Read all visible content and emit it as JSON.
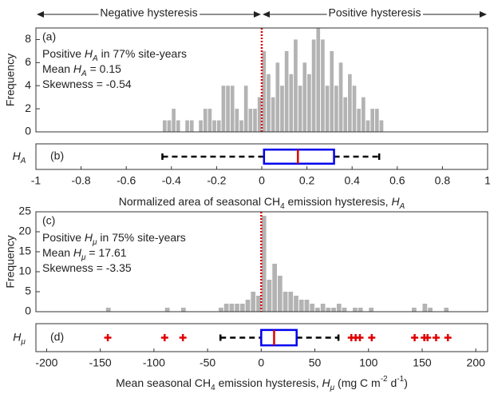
{
  "chart_data": [
    {
      "type": "histogram",
      "panel_label": "(a)",
      "ylabel": "Frequency",
      "header": {
        "left": "Negative hysteresis",
        "right": "Positive hysteresis"
      },
      "bins": [
        -0.46,
        -0.44,
        -0.42,
        -0.4,
        -0.38,
        -0.36,
        -0.34,
        -0.32,
        -0.3,
        -0.28,
        -0.26,
        -0.24,
        -0.22,
        -0.2,
        -0.18,
        -0.16,
        -0.14,
        -0.12,
        -0.1,
        -0.08,
        -0.06,
        -0.04,
        -0.02,
        0,
        0.02,
        0.04,
        0.06,
        0.08,
        0.1,
        0.12,
        0.14,
        0.16,
        0.18,
        0.2,
        0.22,
        0.24,
        0.26,
        0.28,
        0.3,
        0.32,
        0.34,
        0.36,
        0.38,
        0.4,
        0.42,
        0.44,
        0.46,
        0.48,
        0.5,
        0.52,
        0.54
      ],
      "counts": [
        0,
        1,
        1,
        2,
        1,
        0,
        1,
        1,
        0,
        1,
        2,
        2,
        1,
        1,
        4,
        4,
        4,
        2,
        1,
        4,
        2,
        2,
        3,
        7,
        5,
        3,
        6,
        4,
        7,
        5,
        8,
        4,
        6,
        5,
        8,
        9,
        8,
        4,
        7,
        4,
        6,
        3,
        5,
        4,
        2,
        3,
        1,
        2,
        2,
        1
      ],
      "color": "#b3b3b3",
      "xlim": [
        -1,
        1
      ],
      "ylim": [
        0,
        9
      ],
      "yticks": [
        0,
        2,
        4,
        6,
        8
      ],
      "vline": {
        "value": 0,
        "color": "#e00000"
      },
      "text": [
        [
          {
            "text": "Positive "
          },
          {
            "text": "H",
            "italic": true
          },
          {
            "text": "A",
            "sub": true,
            "italic": true
          },
          {
            "text": " in 77% site-years"
          }
        ],
        [
          {
            "text": "Mean  "
          },
          {
            "text": "H",
            "italic": true
          },
          {
            "text": "A",
            "sub": true,
            "italic": true
          },
          {
            "text": " = 0.15"
          }
        ],
        [
          {
            "text": "Skewness  = -0.54"
          }
        ]
      ]
    },
    {
      "type": "box",
      "panel_label": "(b)",
      "ylabel": [
        {
          "text": "H",
          "italic": true
        },
        {
          "text": "A",
          "sub": true,
          "italic": true
        }
      ],
      "box": {
        "whisker_low": -0.44,
        "q1": 0.01,
        "median": 0.16,
        "q3": 0.32,
        "whisker_high": 0.52
      },
      "outliers": [],
      "box_color": "#0000ee",
      "median_color": "#e00000",
      "whisker_color": "#000000",
      "xlim": [
        -1,
        1
      ],
      "xticks": [
        -1,
        -0.8,
        -0.6,
        -0.4,
        -0.2,
        0,
        0.2,
        0.4,
        0.6,
        0.8,
        1
      ],
      "xlabel": [
        {
          "text": "Normalized area of seasonal CH"
        },
        {
          "text": "4",
          "sub": true
        },
        {
          "text": " emission hysteresis,  "
        },
        {
          "text": "H",
          "italic": true
        },
        {
          "text": "A",
          "sub": true,
          "italic": true
        }
      ]
    },
    {
      "type": "histogram",
      "panel_label": "(c)",
      "ylabel": "Frequency",
      "bins": [
        -150,
        -145,
        -140,
        -135,
        -130,
        -125,
        -120,
        -115,
        -110,
        -105,
        -100,
        -95,
        -90,
        -85,
        -80,
        -75,
        -70,
        -65,
        -60,
        -55,
        -50,
        -45,
        -40,
        -35,
        -30,
        -25,
        -20,
        -15,
        -10,
        -5,
        0,
        5,
        10,
        15,
        20,
        25,
        30,
        35,
        40,
        45,
        50,
        55,
        60,
        65,
        70,
        75,
        80,
        85,
        90,
        95,
        100,
        105,
        110,
        115,
        120,
        125,
        130,
        135,
        140,
        145,
        150,
        155,
        160,
        165,
        170,
        175
      ],
      "counts": [
        0,
        1,
        0,
        0,
        0,
        0,
        0,
        0,
        0,
        0,
        0,
        0,
        1,
        0,
        0,
        1,
        0,
        0,
        0,
        0,
        0,
        0,
        1,
        2,
        2,
        2,
        2,
        3,
        5,
        4,
        24,
        8,
        12,
        9,
        5,
        5,
        4,
        3,
        3,
        2,
        1,
        2,
        1,
        1,
        2,
        1,
        0,
        1,
        1,
        0,
        1,
        0,
        0,
        0,
        0,
        0,
        0,
        0,
        1,
        0,
        2,
        1,
        0,
        0,
        1
      ],
      "color": "#b3b3b3",
      "xlim": [
        -210,
        211
      ],
      "ylim": [
        0,
        25
      ],
      "yticks": [
        0,
        5,
        10,
        15,
        20,
        25
      ],
      "vline": {
        "value": 0,
        "color": "#e00000"
      },
      "text": [
        [
          {
            "text": "Positive "
          },
          {
            "text": "H",
            "italic": true
          },
          {
            "text": "μ",
            "sub": true,
            "italic": true
          },
          {
            "text": " in 75% site-years"
          }
        ],
        [
          {
            "text": "Mean  "
          },
          {
            "text": "H",
            "italic": true
          },
          {
            "text": "μ",
            "sub": true,
            "italic": true
          },
          {
            "text": " = 17.61"
          }
        ],
        [
          {
            "text": "Skewness  = -3.35"
          }
        ]
      ]
    },
    {
      "type": "box",
      "panel_label": "(d)",
      "ylabel": [
        {
          "text": "H",
          "italic": true
        },
        {
          "text": "μ",
          "sub": true,
          "italic": true
        }
      ],
      "box": {
        "whisker_low": -38,
        "q1": 0,
        "median": 12,
        "q3": 33,
        "whisker_high": 72
      },
      "outliers": [
        -143,
        -90,
        -73,
        84,
        88,
        92,
        103,
        143,
        152,
        155,
        163,
        174
      ],
      "box_color": "#0000ee",
      "median_color": "#e00000",
      "whisker_color": "#000000",
      "xlim": [
        -210,
        211
      ],
      "xticks": [
        -200,
        -150,
        -100,
        -50,
        0,
        50,
        100,
        150,
        200
      ],
      "xlabel": [
        {
          "text": "Mean seasonal CH"
        },
        {
          "text": "4",
          "sub": true
        },
        {
          "text": " emission hysteresis,  "
        },
        {
          "text": "H",
          "italic": true
        },
        {
          "text": "μ",
          "sub": true,
          "italic": true
        },
        {
          "text": " (mg C m"
        },
        {
          "text": "-2",
          "sup": true
        },
        {
          "text": " d"
        },
        {
          "text": "-1",
          "sup": true
        },
        {
          "text": ")"
        }
      ]
    }
  ]
}
